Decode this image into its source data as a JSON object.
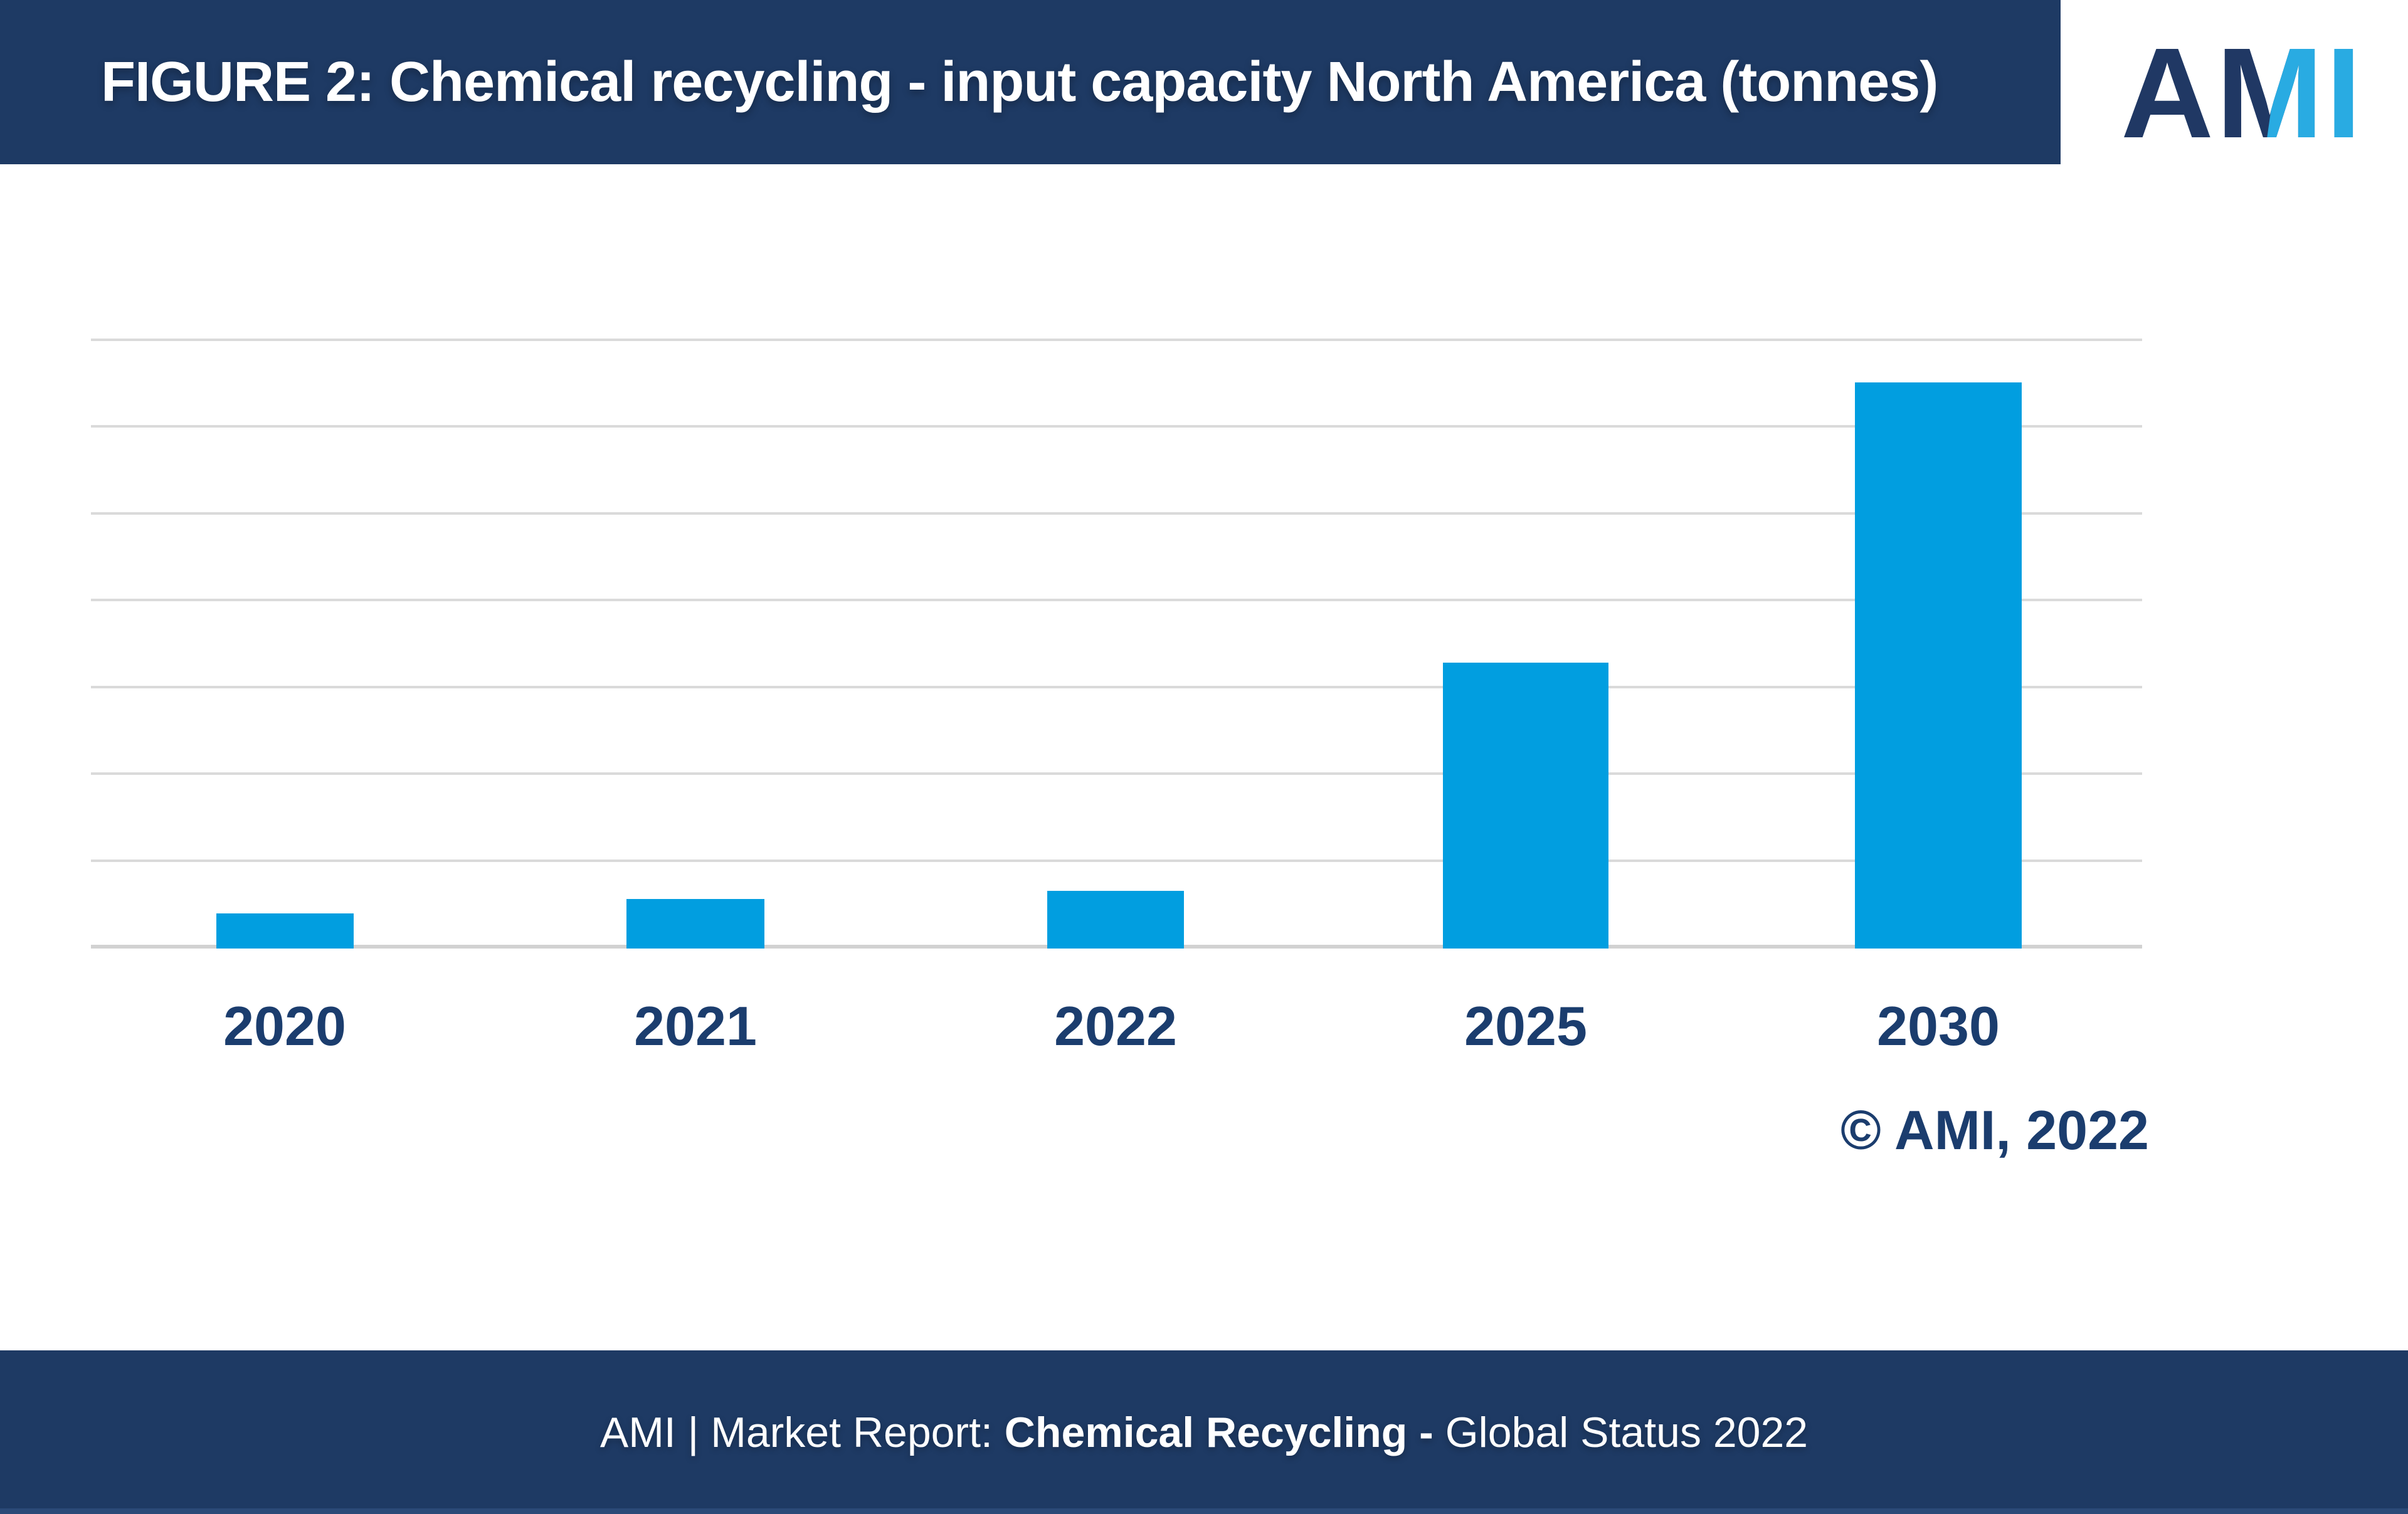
{
  "colors": {
    "navy": "#1E3A64",
    "logo_navy": "#203864",
    "logo_cyan": "#29ABE2",
    "bar_blue": "#019EE0",
    "grid": "#DADADA",
    "grid_dark": "#D2D2D2",
    "label_navy": "#1B3D6E",
    "footer_strip": "#2B4A78"
  },
  "header": {
    "title": "FIGURE 2: Chemical recycling - input capacity North America (tonnes)",
    "logo_text": "AMI"
  },
  "chart_data": {
    "type": "bar",
    "title": "FIGURE 2: Chemical recycling - input capacity North America (tonnes)",
    "categories": [
      "2020",
      "2021",
      "2022",
      "2025",
      "2030"
    ],
    "values": [
      0.4,
      0.57,
      0.66,
      3.28,
      6.5
    ],
    "value_unit": "gridline intervals (y-axis shows no tick labels; heights estimated from gridlines)",
    "xlabel": "",
    "ylabel": "",
    "ylim": [
      0,
      7
    ],
    "gridline_count": 8,
    "grid": "horizontal gridlines only, no axis tick labels, no legend, no data labels",
    "legend_position": "none",
    "bar_color": "#019EE0"
  },
  "annotations": {
    "copyright": "© AMI, 2022"
  },
  "footer": {
    "segments": [
      {
        "text": "AMI  |  Market Report: ",
        "style": "regular"
      },
      {
        "text": "Chemical Recycling -",
        "style": "bold"
      },
      {
        "text": " Global Status 2022",
        "style": "regular"
      }
    ]
  }
}
